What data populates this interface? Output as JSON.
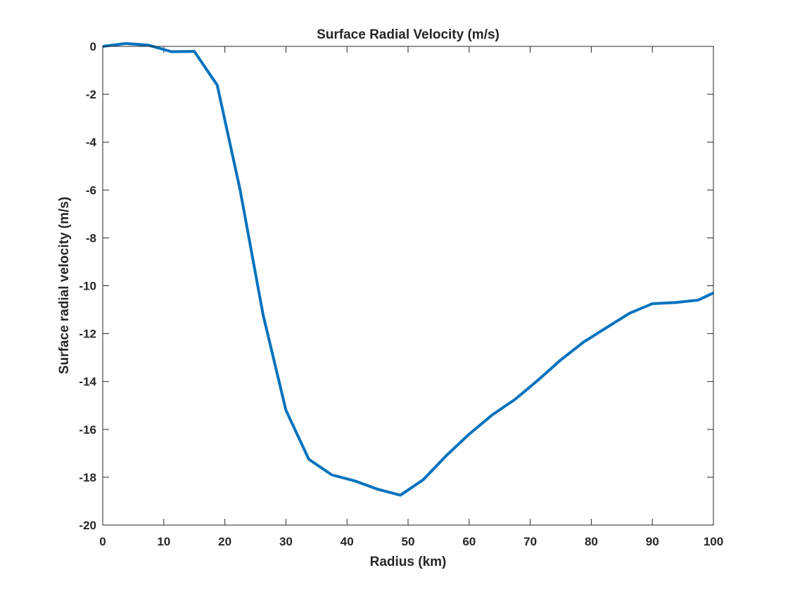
{
  "chart_data": {
    "type": "line",
    "title": "Surface Radial Velocity (m/s)",
    "xlabel": "Radius (km)",
    "ylabel": "Surface radial velocity (m/s)",
    "xlim": [
      0,
      100
    ],
    "ylim": [
      -20,
      0
    ],
    "xticks": [
      0,
      10,
      20,
      30,
      40,
      50,
      60,
      70,
      80,
      90,
      100
    ],
    "yticks": [
      0,
      -2,
      -4,
      -6,
      -8,
      -10,
      -12,
      -14,
      -16,
      -18,
      -20
    ],
    "grid": false,
    "legend": "none",
    "series": [
      {
        "color": "#0072BD",
        "x": [
          0,
          3.75,
          7.5,
          11.25,
          15,
          18.75,
          22.5,
          26.25,
          30,
          33.75,
          37.5,
          41.25,
          45,
          48.75,
          52.5,
          56.25,
          60,
          63.75,
          67.5,
          71.25,
          75,
          78.75,
          82.5,
          86.25,
          90,
          93.75,
          97.5,
          100
        ],
        "y": [
          0.0,
          0.12,
          0.05,
          -0.22,
          -0.21,
          -1.62,
          -6.0,
          -11.2,
          -15.2,
          -17.25,
          -17.9,
          -18.15,
          -18.5,
          -18.75,
          -18.1,
          -17.1,
          -16.2,
          -15.4,
          -14.75,
          -13.95,
          -13.1,
          -12.35,
          -11.75,
          -11.15,
          -10.75,
          -10.7,
          -10.6,
          -10.3
        ]
      }
    ]
  }
}
